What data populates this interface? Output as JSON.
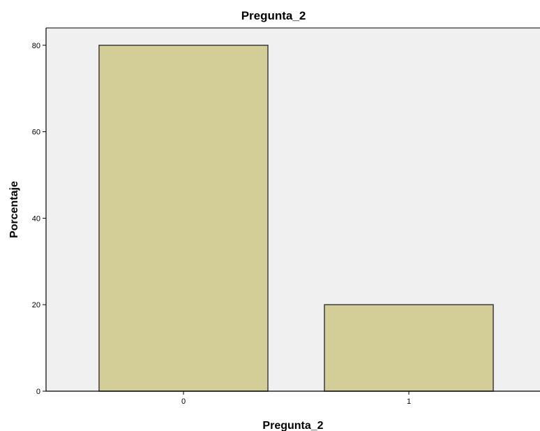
{
  "colors": {
    "plot_background": "#f0f0f0",
    "bar_fill": "#d3ce97",
    "bar_stroke": "#3c3c3c",
    "axis": "#000000"
  },
  "chart_data": {
    "type": "bar",
    "title": "Pregunta_2",
    "xlabel": "Pregunta_2",
    "ylabel": "Porcentaje",
    "categories": [
      "0",
      "1"
    ],
    "values": [
      80,
      20
    ],
    "ylim": [
      0,
      84
    ],
    "yticks": [
      0,
      20,
      40,
      60,
      80
    ],
    "ytick_labels": [
      "0",
      "20",
      "40",
      "60",
      "80"
    ],
    "grid": false,
    "legend": "none"
  }
}
